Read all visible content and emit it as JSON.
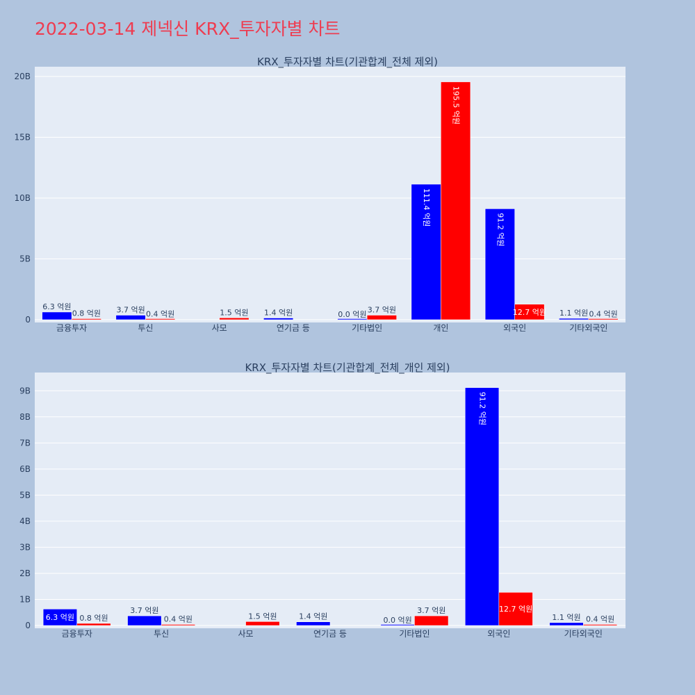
{
  "title": "2022-03-14 제넥신 KRX_투자자별 차트",
  "colors": {
    "buy": "#0000ff",
    "sell": "#ff0000",
    "plot_bg": "#e5ecf6",
    "page_bg": "#b0c4de",
    "title": "#ee3c50"
  },
  "chart_data": [
    {
      "type": "bar",
      "title": "KRX_투자자별 차트(기관합계_전체 제외)",
      "categories": [
        "금융투자",
        "투신",
        "사모",
        "연기금 등",
        "기타법인",
        "개인",
        "외국인",
        "기타외국인"
      ],
      "series": [
        {
          "values": [
            0.63,
            0.37,
            null,
            0.14,
            0.0,
            11.14,
            9.12,
            0.11
          ],
          "labels": [
            "6.3 억원",
            "3.7 억원",
            "",
            "1.4 억원",
            "0.0 억원",
            "111.4 억원",
            "91.2 억원",
            "1.1 억원"
          ]
        },
        {
          "values": [
            0.08,
            0.04,
            0.15,
            null,
            0.37,
            19.55,
            1.27,
            0.04
          ],
          "labels": [
            "0.8 억원",
            "0.4 억원",
            "1.5 억원",
            "",
            "3.7 억원",
            "195.5 억원",
            "12.7 억원",
            "0.4 억원"
          ]
        }
      ],
      "ylim": [
        0,
        20.8
      ],
      "yticks": [
        0,
        5,
        10,
        15,
        20
      ],
      "ytick_labels": [
        "0",
        "5B",
        "10B",
        "15B",
        "20B"
      ],
      "grid": true
    },
    {
      "type": "bar",
      "title": "KRX_투자자별 차트(기관합계_전체_개인 제외)",
      "categories": [
        "금융투자",
        "투신",
        "사모",
        "연기금 등",
        "기타법인",
        "외국인",
        "기타외국인"
      ],
      "series": [
        {
          "values": [
            0.63,
            0.37,
            null,
            0.14,
            0.0,
            9.12,
            0.11
          ],
          "labels": [
            "6.3 억원",
            "3.7 억원",
            "",
            "1.4 억원",
            "0.0 억원",
            "91.2 억원",
            "1.1 억원"
          ]
        },
        {
          "values": [
            0.08,
            0.04,
            0.15,
            null,
            0.37,
            1.27,
            0.04
          ],
          "labels": [
            "0.8 억원",
            "0.4 억원",
            "1.5 억원",
            "",
            "3.7 억원",
            "12.7 억원",
            "0.4 억원"
          ]
        }
      ],
      "ylim": [
        0,
        9.7
      ],
      "yticks": [
        0,
        1,
        2,
        3,
        4,
        5,
        6,
        7,
        8,
        9
      ],
      "ytick_labels": [
        "0",
        "1B",
        "2B",
        "3B",
        "4B",
        "5B",
        "6B",
        "7B",
        "8B",
        "9B"
      ],
      "grid": true
    }
  ]
}
